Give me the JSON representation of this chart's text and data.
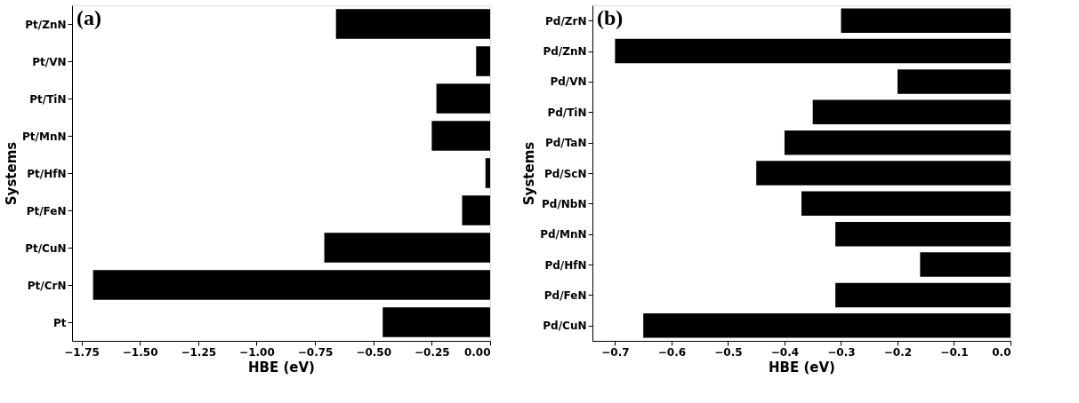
{
  "chart_data": [
    {
      "type": "bar",
      "orientation": "horizontal",
      "annotations": [
        "(a)"
      ],
      "xlabel": "HBE (eV)",
      "ylabel": "Systems",
      "categories": [
        "Pt/ZnN",
        "Pt/VN",
        "Pt/TiN",
        "Pt/MnN",
        "Pt/HfN",
        "Pt/FeN",
        "Pt/CuN",
        "Pt/CrN",
        "Pt"
      ],
      "values": [
        -0.66,
        -0.06,
        -0.23,
        -0.25,
        -0.02,
        -0.12,
        -0.71,
        -1.7,
        -0.46
      ],
      "color": "#000000",
      "xlim": [
        -1.79,
        0
      ],
      "xticks": [
        {
          "value": -1.75,
          "label": "−1.75"
        },
        {
          "value": -1.5,
          "label": "−1.50"
        },
        {
          "value": -1.25,
          "label": "−1.25"
        },
        {
          "value": -1.0,
          "label": "−1.00"
        },
        {
          "value": -0.75,
          "label": "−0.75"
        },
        {
          "value": -0.5,
          "label": "−0.50"
        },
        {
          "value": -0.25,
          "label": "−0.25"
        },
        {
          "value": 0,
          "label": "0.00"
        }
      ],
      "grid": false
    },
    {
      "type": "bar",
      "orientation": "horizontal",
      "annotations": [
        "(b)"
      ],
      "xlabel": "HBE (eV)",
      "ylabel": "Systems",
      "categories": [
        "Pd/ZrN",
        "Pd/ZnN",
        "Pd/VN",
        "Pd/TiN",
        "Pd/TaN",
        "Pd/ScN",
        "Pd/NbN",
        "Pd/MnN",
        "Pd/HfN",
        "Pd/FeN",
        "Pd/CuN"
      ],
      "values": [
        -0.3,
        -0.7,
        -0.2,
        -0.35,
        -0.4,
        -0.45,
        -0.37,
        -0.31,
        -0.16,
        -0.31,
        -0.65
      ],
      "color": "#000000",
      "xlim": [
        -0.74,
        0
      ],
      "xticks": [
        {
          "value": -0.7,
          "label": "−0.7"
        },
        {
          "value": -0.6,
          "label": "−0.6"
        },
        {
          "value": -0.5,
          "label": "−0.5"
        },
        {
          "value": -0.4,
          "label": "−0.4"
        },
        {
          "value": -0.3,
          "label": "−0.3"
        },
        {
          "value": -0.2,
          "label": "−0.2"
        },
        {
          "value": -0.1,
          "label": "−0.1"
        },
        {
          "value": 0,
          "label": "0.0"
        }
      ],
      "grid": false
    }
  ]
}
